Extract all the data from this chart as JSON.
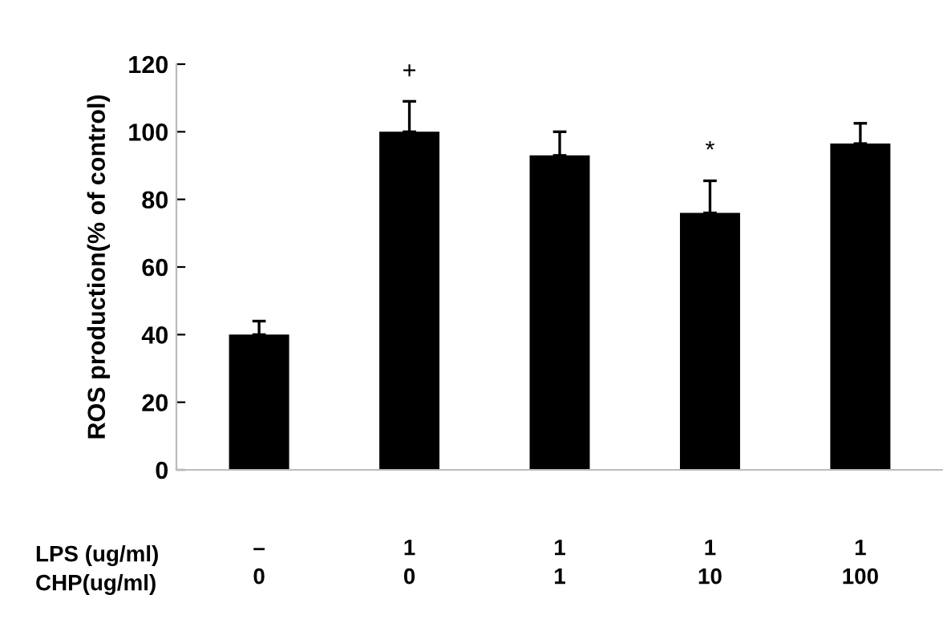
{
  "chart_data": {
    "type": "bar",
    "ylabel": "ROS production(% of control)",
    "categories": [
      "–\n0",
      "1\n0",
      "1\n1",
      "1\n10",
      "1\n100"
    ],
    "values": [
      40,
      100,
      93,
      76,
      96.5
    ],
    "errors": [
      [
        40,
        44
      ],
      [
        100,
        109
      ],
      [
        93,
        100
      ],
      [
        76,
        85.5
      ],
      [
        96.5,
        102.5
      ]
    ],
    "color": "#000000",
    "ylim": [
      0,
      120
    ],
    "yticks": [
      0,
      20,
      40,
      60,
      80,
      100,
      120
    ],
    "grid": false,
    "legend": false,
    "annotations": [
      {
        "text": "+",
        "x": "1\n0",
        "y": 109
      },
      {
        "text": "*",
        "x": "1\n10",
        "y": 85.5
      },
      "LPS (ug/ml)\nCHP(ug/ml)"
    ]
  }
}
